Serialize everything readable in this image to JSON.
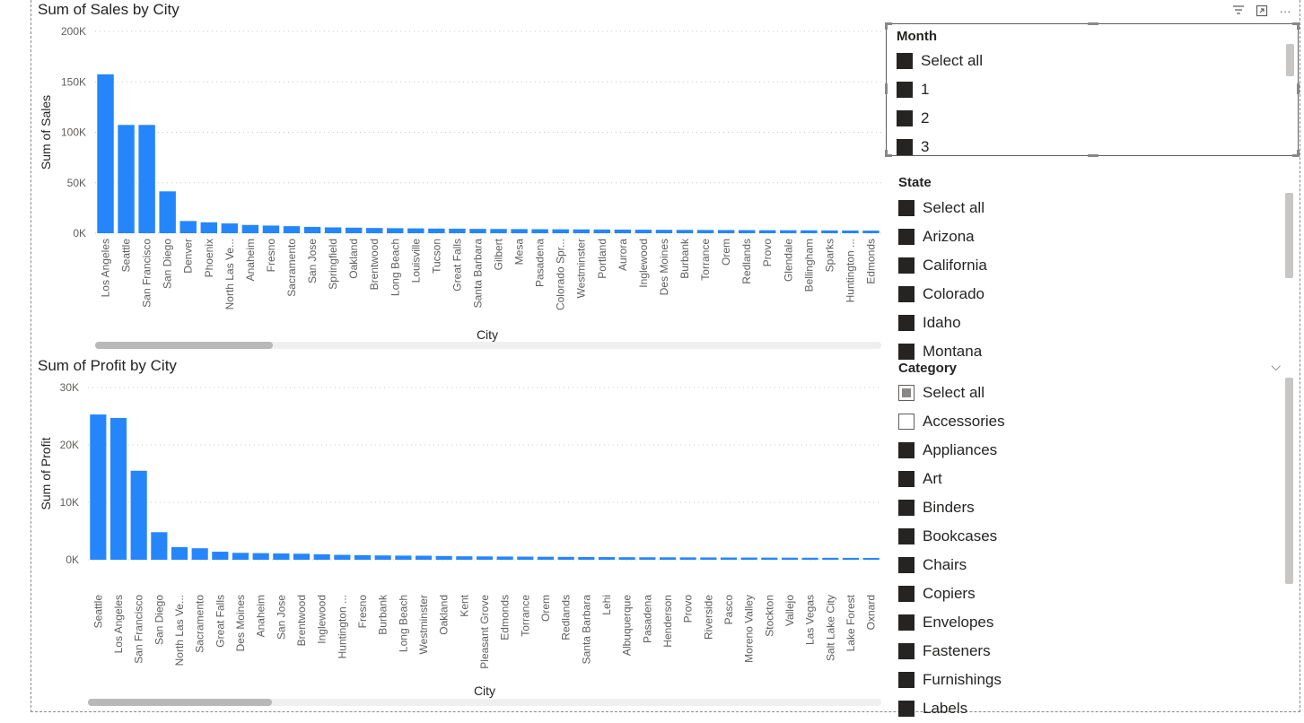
{
  "colors": {
    "bar": "#2586fb",
    "grid": "#c8c8c8"
  },
  "visual_header": {
    "filter_icon": "filter-icon",
    "focus_icon": "focus-mode-icon",
    "more_icon": "more-options-icon",
    "more_label": "···"
  },
  "chart_data": [
    {
      "type": "bar",
      "title": "Sum of Sales by City",
      "xlabel": "City",
      "ylabel": "Sum of Sales",
      "ylim": [
        0,
        200000
      ],
      "yticks": [
        0,
        50000,
        100000,
        150000,
        200000
      ],
      "ytick_labels": [
        "0K",
        "50K",
        "100K",
        "150K",
        "200K"
      ],
      "grid": true,
      "categories": [
        "Los Angeles",
        "Seattle",
        "San Francisco",
        "San Diego",
        "Denver",
        "Phoenix",
        "North Las Ve...",
        "Anaheim",
        "Fresno",
        "Sacramento",
        "San Jose",
        "Springfield",
        "Oakland",
        "Brentwood",
        "Long Beach",
        "Louisville",
        "Tucson",
        "Great Falls",
        "Santa Barbara",
        "Gilbert",
        "Mesa",
        "Pasadena",
        "Colorado Spr...",
        "Westminster",
        "Portland",
        "Aurora",
        "Inglewood",
        "Des Moines",
        "Burbank",
        "Torrance",
        "Orem",
        "Redlands",
        "Provo",
        "Glendale",
        "Bellingham",
        "Sparks",
        "Huntington ...",
        "Edmonds"
      ],
      "values": [
        157500,
        107300,
        107300,
        41500,
        12100,
        10800,
        9700,
        8200,
        7600,
        7000,
        6300,
        5800,
        5500,
        5200,
        5000,
        4800,
        4600,
        4500,
        4300,
        4200,
        4100,
        4000,
        3900,
        3800,
        3700,
        3600,
        3500,
        3400,
        3300,
        3200,
        3150,
        3100,
        3000,
        2950,
        2900,
        2800,
        2700,
        2600
      ]
    },
    {
      "type": "bar",
      "title": "Sum of Profit by City",
      "xlabel": "City",
      "ylabel": "Sum of Profit",
      "ylim": [
        0,
        30000
      ],
      "yticks": [
        0,
        10000,
        20000,
        30000
      ],
      "ytick_labels": [
        "0K",
        "10K",
        "20K",
        "30K"
      ],
      "grid": true,
      "categories": [
        "Seattle",
        "Los Angeles",
        "San Francisco",
        "San Diego",
        "North Las Ve...",
        "Sacramento",
        "Great Falls",
        "Des Moines",
        "Anaheim",
        "San Jose",
        "Brentwood",
        "Inglewood",
        "Huntington ...",
        "Fresno",
        "Burbank",
        "Long Beach",
        "Westminster",
        "Oakland",
        "Kent",
        "Pleasant Grove",
        "Edmonds",
        "Torrance",
        "Orem",
        "Redlands",
        "Santa Barbara",
        "Lehi",
        "Albuquerque",
        "Pasadena",
        "Henderson",
        "Provo",
        "Riverside",
        "Pasco",
        "Moreno Valley",
        "Stockton",
        "Vallejo",
        "Las Vegas",
        "Salt Lake City",
        "Lake Forest",
        "Oxnard"
      ],
      "values": [
        25300,
        24700,
        15500,
        4800,
        2200,
        2000,
        1400,
        1200,
        1150,
        1100,
        1050,
        950,
        850,
        800,
        750,
        720,
        700,
        650,
        600,
        580,
        560,
        540,
        520,
        500,
        480,
        460,
        440,
        430,
        420,
        410,
        400,
        390,
        380,
        370,
        360,
        350,
        340,
        330,
        320
      ]
    }
  ],
  "slicers": {
    "month": {
      "title": "Month",
      "items": [
        {
          "label": "Select all",
          "state": "checked"
        },
        {
          "label": "1",
          "state": "checked"
        },
        {
          "label": "2",
          "state": "checked"
        },
        {
          "label": "3",
          "state": "checked"
        }
      ]
    },
    "state": {
      "title": "State",
      "items": [
        {
          "label": "Select all",
          "state": "checked"
        },
        {
          "label": "Arizona",
          "state": "checked"
        },
        {
          "label": "California",
          "state": "checked"
        },
        {
          "label": "Colorado",
          "state": "checked"
        },
        {
          "label": "Idaho",
          "state": "checked"
        },
        {
          "label": "Montana",
          "state": "checked"
        }
      ]
    },
    "category": {
      "title": "Category",
      "chevron": "⌵",
      "items": [
        {
          "label": "Select all",
          "state": "partial"
        },
        {
          "label": "Accessories",
          "state": "unchecked"
        },
        {
          "label": "Appliances",
          "state": "checked"
        },
        {
          "label": "Art",
          "state": "checked"
        },
        {
          "label": "Binders",
          "state": "checked"
        },
        {
          "label": "Bookcases",
          "state": "checked"
        },
        {
          "label": "Chairs",
          "state": "checked"
        },
        {
          "label": "Copiers",
          "state": "checked"
        },
        {
          "label": "Envelopes",
          "state": "checked"
        },
        {
          "label": "Fasteners",
          "state": "checked"
        },
        {
          "label": "Furnishings",
          "state": "checked"
        },
        {
          "label": "Labels",
          "state": "checked"
        }
      ]
    }
  }
}
